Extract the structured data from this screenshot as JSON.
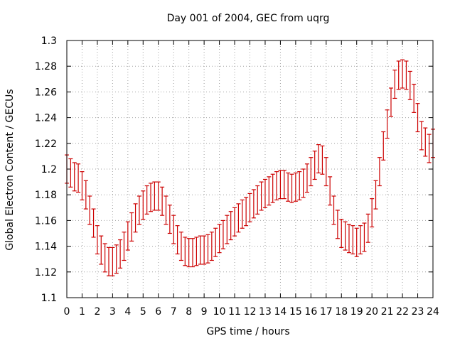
{
  "chart_data": {
    "type": "line",
    "title": "Day 001 of 2004, GEC from uqrg",
    "xlabel": "GPS time / hours",
    "ylabel": "Global Electron Content / GECUs",
    "xlim": [
      0,
      24
    ],
    "ylim": [
      1.1,
      1.3
    ],
    "grid": true,
    "x_ticks": [
      "0",
      "1",
      "2",
      "3",
      "4",
      "5",
      "6",
      "7",
      "8",
      "9",
      "10",
      "11",
      "12",
      "13",
      "14",
      "15",
      "16",
      "17",
      "18",
      "19",
      "20",
      "21",
      "22",
      "23",
      "24"
    ],
    "y_ticks": [
      "1.1",
      "1.12",
      "1.14",
      "1.16",
      "1.18",
      "1.2",
      "1.22",
      "1.24",
      "1.26",
      "1.28",
      "1.3"
    ],
    "series": [
      {
        "name": "GEC",
        "color": "#cc0000",
        "error_bar": 0.011,
        "x": [
          0,
          0.25,
          0.5,
          0.75,
          1,
          1.25,
          1.5,
          1.75,
          2,
          2.25,
          2.5,
          2.75,
          3,
          3.25,
          3.5,
          3.75,
          4,
          4.25,
          4.5,
          4.75,
          5,
          5.25,
          5.5,
          5.75,
          6,
          6.25,
          6.5,
          6.75,
          7,
          7.25,
          7.5,
          7.75,
          8,
          8.25,
          8.5,
          8.75,
          9,
          9.25,
          9.5,
          9.75,
          10,
          10.25,
          10.5,
          10.75,
          11,
          11.25,
          11.5,
          11.75,
          12,
          12.25,
          12.5,
          12.75,
          13,
          13.25,
          13.5,
          13.75,
          14,
          14.25,
          14.5,
          14.75,
          15,
          15.25,
          15.5,
          15.75,
          16,
          16.25,
          16.5,
          16.75,
          17,
          17.25,
          17.5,
          17.75,
          18,
          18.25,
          18.5,
          18.75,
          19,
          19.25,
          19.5,
          19.75,
          20,
          20.25,
          20.5,
          20.75,
          21,
          21.25,
          21.5,
          21.75,
          22,
          22.25,
          22.5,
          22.75,
          23,
          23.25,
          23.5,
          23.75,
          24
        ],
        "y": [
          1.2,
          1.197,
          1.194,
          1.193,
          1.187,
          1.18,
          1.168,
          1.158,
          1.145,
          1.137,
          1.131,
          1.128,
          1.128,
          1.13,
          1.134,
          1.14,
          1.148,
          1.155,
          1.162,
          1.168,
          1.172,
          1.176,
          1.178,
          1.179,
          1.179,
          1.175,
          1.168,
          1.161,
          1.153,
          1.145,
          1.14,
          1.136,
          1.135,
          1.135,
          1.136,
          1.137,
          1.137,
          1.138,
          1.14,
          1.143,
          1.146,
          1.149,
          1.153,
          1.156,
          1.159,
          1.162,
          1.165,
          1.167,
          1.17,
          1.173,
          1.176,
          1.179,
          1.181,
          1.183,
          1.185,
          1.187,
          1.188,
          1.188,
          1.186,
          1.185,
          1.186,
          1.187,
          1.189,
          1.193,
          1.198,
          1.203,
          1.208,
          1.207,
          1.198,
          1.183,
          1.168,
          1.157,
          1.15,
          1.148,
          1.146,
          1.145,
          1.143,
          1.145,
          1.147,
          1.154,
          1.166,
          1.18,
          1.198,
          1.218,
          1.235,
          1.252,
          1.266,
          1.273,
          1.274,
          1.273,
          1.265,
          1.255,
          1.24,
          1.226,
          1.221,
          1.216,
          1.22
        ]
      }
    ]
  }
}
